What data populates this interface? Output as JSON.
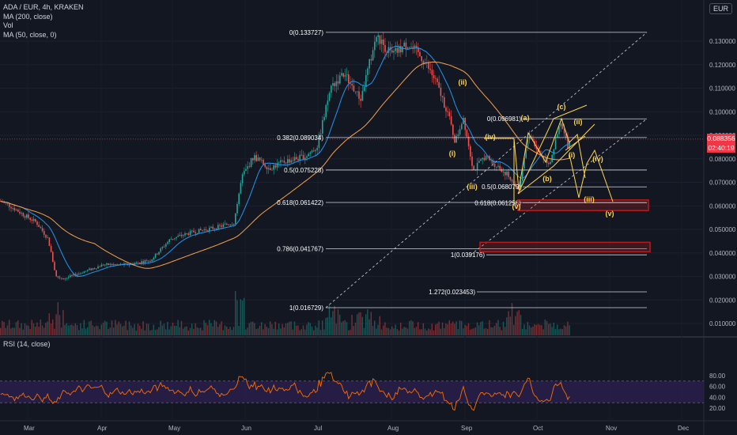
{
  "header": {
    "symbol_line": "ADA / EUR, 4h, KRAKEN",
    "indicators": [
      "MA (200, close)",
      "Vol",
      "MA (50, close, 0)"
    ],
    "currency": "EUR",
    "rsi_label": "RSI (14, close)"
  },
  "price_axis": {
    "labels": [
      "0.130000",
      "0.120000",
      "0.110000",
      "0.100000",
      "0.090000",
      "0.080000",
      "0.070000",
      "0.060000",
      "0.050000",
      "0.040000",
      "0.030000",
      "0.020000",
      "0.010000"
    ],
    "values": [
      0.13,
      0.12,
      0.11,
      0.1,
      0.09,
      0.08,
      0.07,
      0.06,
      0.05,
      0.04,
      0.03,
      0.02,
      0.01
    ],
    "current_price": "0.088356",
    "countdown": "02:40:19"
  },
  "rsi_axis": {
    "labels": [
      "80.00",
      "60.00",
      "40.00",
      "20.00"
    ],
    "values": [
      80,
      60,
      40,
      20
    ],
    "upper_band": 70,
    "lower_band": 30
  },
  "time_axis": {
    "labels": [
      "Mar",
      "Apr",
      "May",
      "Jun",
      "Jul",
      "Aug",
      "Sep",
      "Oct",
      "Nov",
      "Dec"
    ]
  },
  "fib_main": [
    {
      "label": "0(0.133727)",
      "value": 0.133727
    },
    {
      "label": "0.382(0.089034)",
      "value": 0.089034
    },
    {
      "label": "0.5(0.075228)",
      "value": 0.075228
    },
    {
      "label": "0.618(0.061422)",
      "value": 0.061422
    },
    {
      "label": "0.786(0.041767)",
      "value": 0.041767
    },
    {
      "label": "1(0.016729)",
      "value": 0.016729
    }
  ],
  "fib_secondary": [
    {
      "label": "0(0.096981)",
      "value": 0.096981
    },
    {
      "label": "0.5(0.068079)",
      "value": 0.068079
    },
    {
      "label": "0.618(0.061258)",
      "value": 0.061258
    },
    {
      "label": "1(0.039176)",
      "value": 0.039176
    },
    {
      "label": "1.272(0.023453)",
      "value": 0.023453
    }
  ],
  "wave_labels": [
    "(ii)",
    "(i)",
    "(iv)",
    "(iii)",
    "(v)",
    "(a)",
    "(b)",
    "(c)",
    "(ii)",
    "(i)",
    "(iv)",
    "(iii)",
    "(v)"
  ],
  "colors": {
    "background": "#131722",
    "up": "#26a69a",
    "down": "#ef5350",
    "ma200": "#f7a24b",
    "ma50": "#2196f3",
    "wave": "#ffd54f",
    "fib": "#d1d4dc",
    "rsi": "#ff6d00",
    "rsi_band_fill": "#2a1e4a",
    "zone": "#b71c1c"
  }
}
